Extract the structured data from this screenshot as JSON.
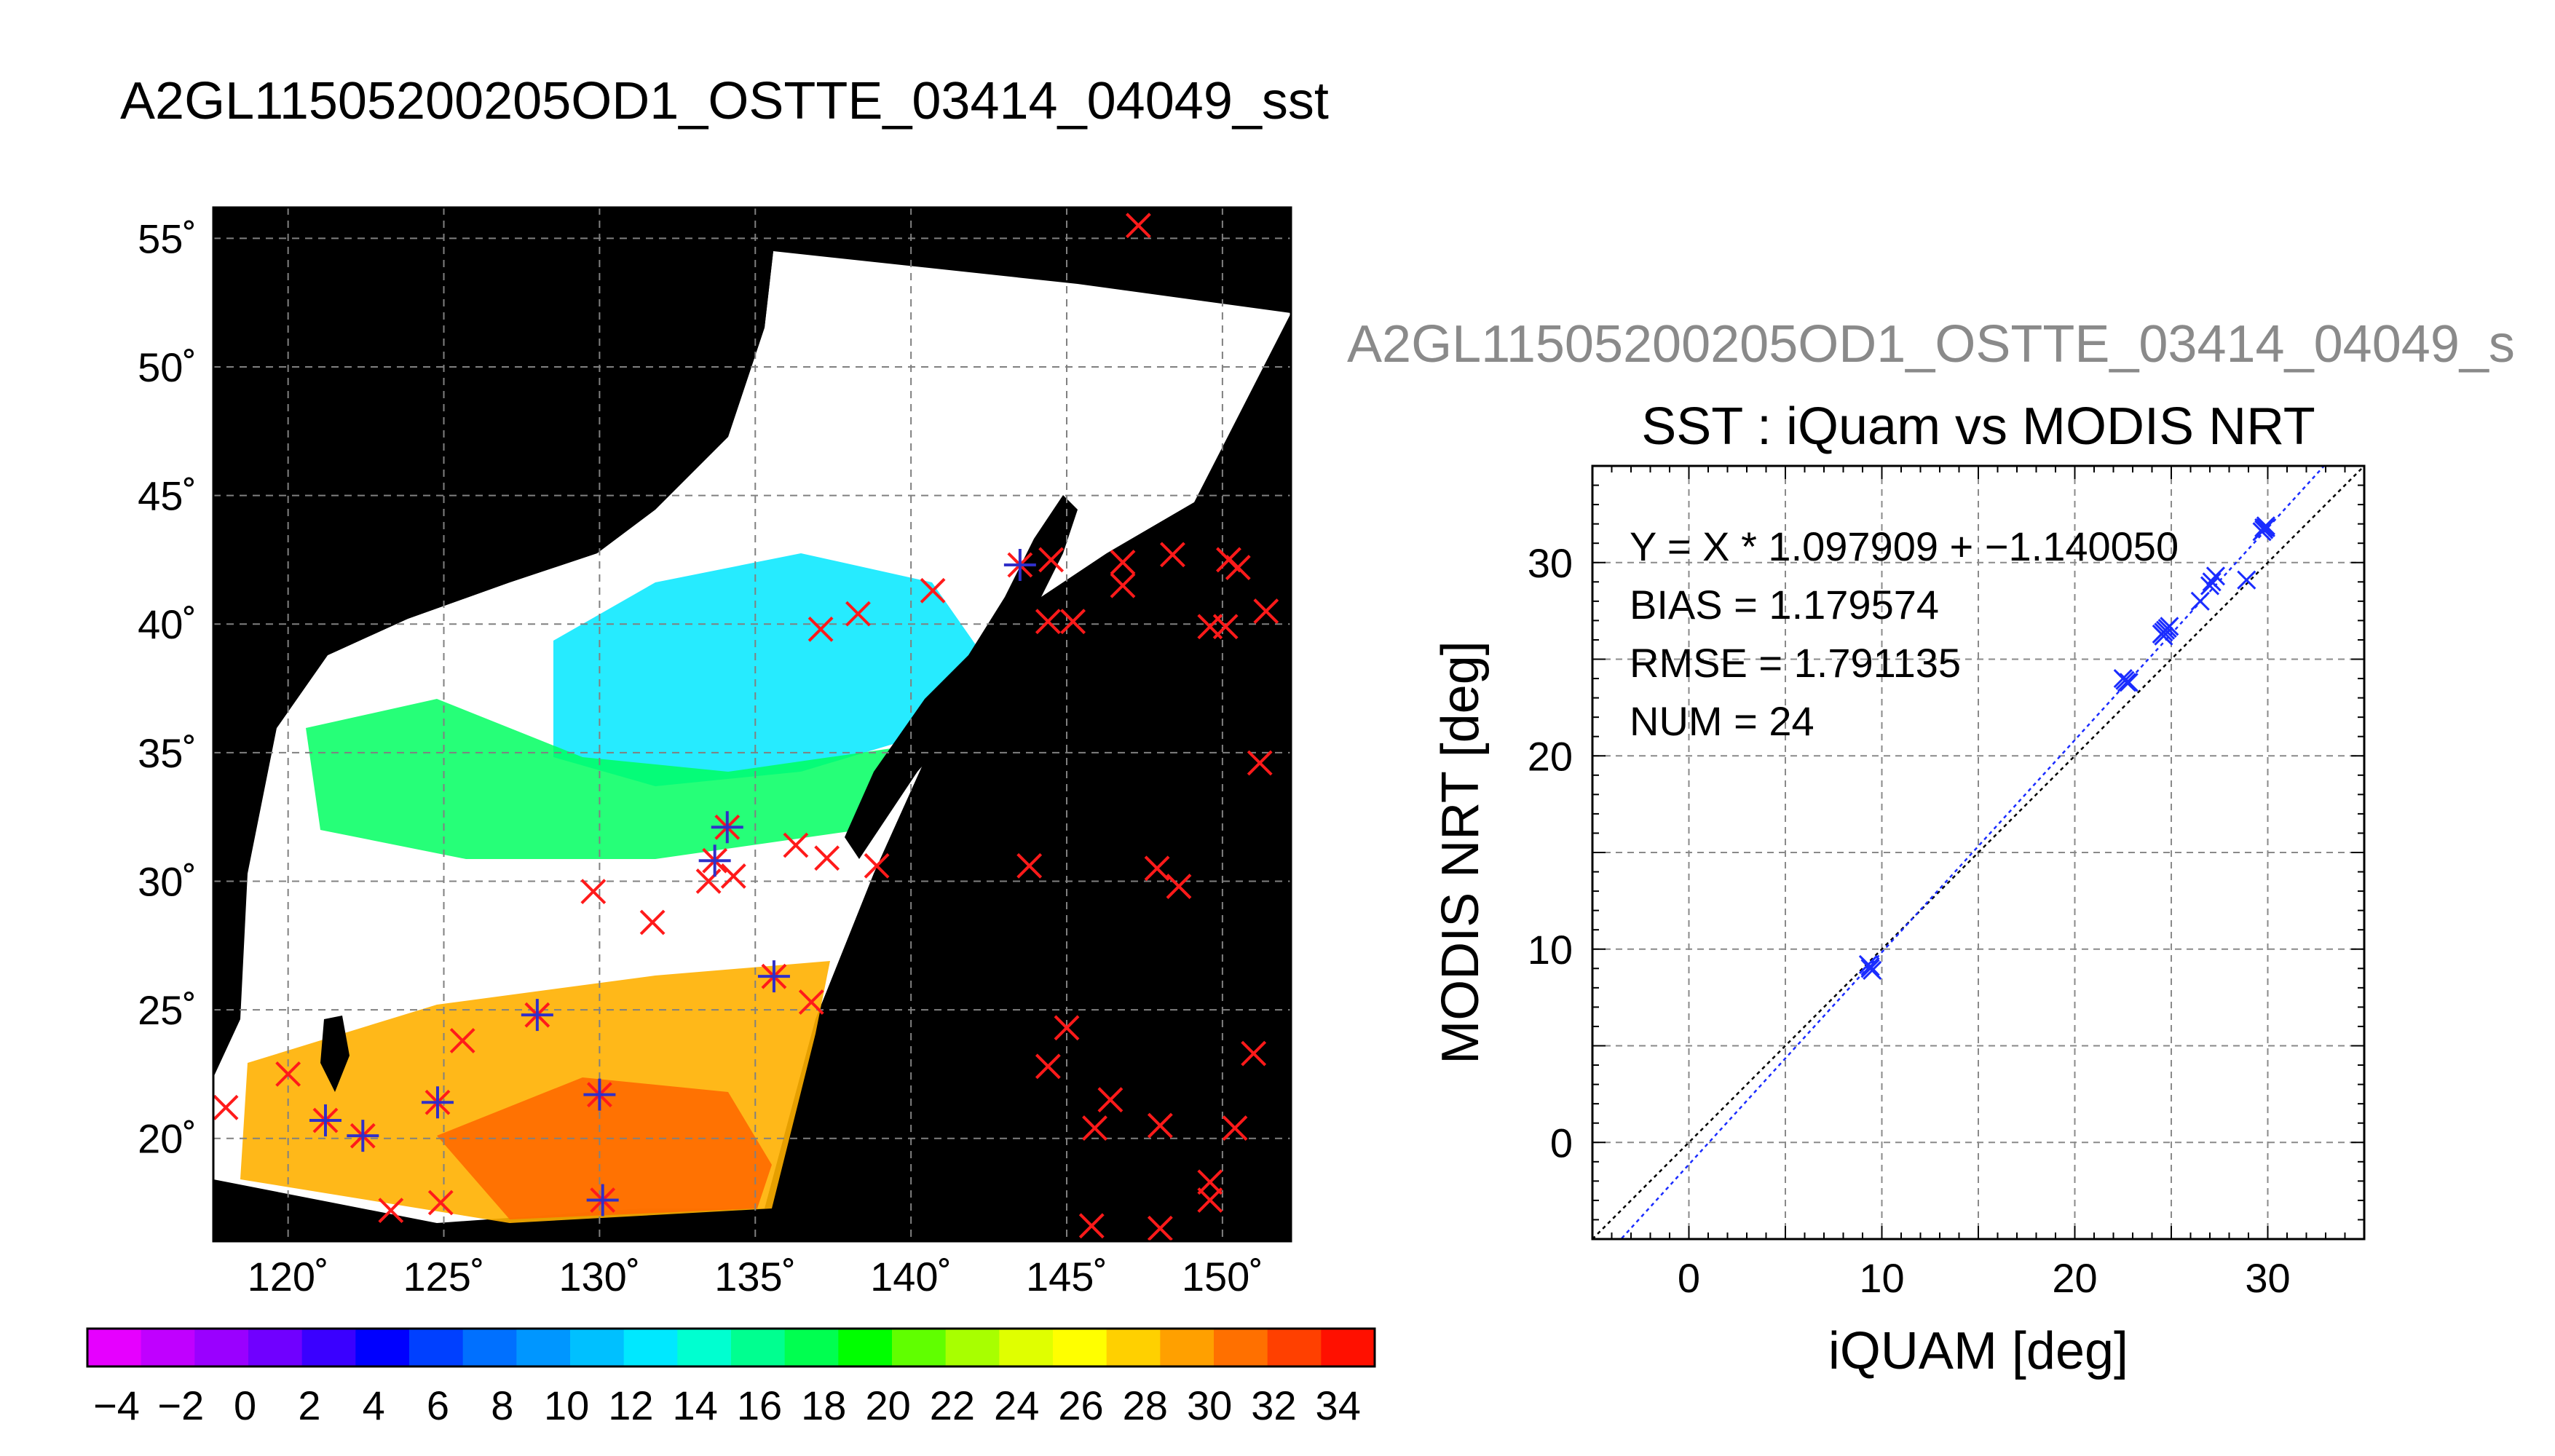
{
  "figure": {
    "title": "A2GL11505200205OD1_OSTTE_03414_04049_sst"
  },
  "map": {
    "lat_ticks": [
      "55˚",
      "50˚",
      "45˚",
      "40˚",
      "35˚",
      "30˚",
      "25˚",
      "20˚"
    ],
    "lon_ticks": [
      "120˚",
      "125˚",
      "130˚",
      "135˚",
      "140˚",
      "145˚",
      "150˚"
    ],
    "colorbar": {
      "ticks": [
        "−4",
        "−2",
        "0",
        "2",
        "4",
        "6",
        "8",
        "10",
        "12",
        "14",
        "16",
        "18",
        "20",
        "22",
        "24",
        "26",
        "28",
        "30",
        "32",
        "34"
      ],
      "colors": [
        "#e600ff",
        "#c000ff",
        "#9a00ff",
        "#7000ff",
        "#3a00ff",
        "#0000ff",
        "#0040ff",
        "#0070ff",
        "#0096ff",
        "#00c0ff",
        "#00e8ff",
        "#00ffd0",
        "#00ff90",
        "#00ff50",
        "#00ff00",
        "#60ff00",
        "#a8ff00",
        "#e0ff00",
        "#ffff00",
        "#ffd000",
        "#ffa000",
        "#ff7000",
        "#ff4000",
        "#ff1000"
      ]
    },
    "colors": {
      "background": "#000000",
      "cloud_mask": "#ffffff",
      "marker_unmatched": "#ff1a1a",
      "marker_matched": "#3030c8"
    }
  },
  "scatter": {
    "header": "A2GL11505200205OD1_OSTTE_03414_04049_s",
    "stats": {
      "equation": "Y = X * 1.097909 + −1.140050",
      "bias": "BIAS = 1.179574",
      "rmse": "RMSE = 1.791135",
      "num": "NUM = 24"
    }
  },
  "chart_data": {
    "type": "scatter",
    "title": "SST : iQuam vs MODIS NRT",
    "xlabel": "iQUAM [deg]",
    "ylabel": "MODIS NRT [deg]",
    "xlim": [
      -5,
      35
    ],
    "ylim": [
      -5,
      35
    ],
    "xticks": [
      "0",
      "10",
      "20",
      "30"
    ],
    "yticks": [
      "0",
      "10",
      "20",
      "30"
    ],
    "grid": true,
    "series": [
      {
        "points": [
          [
            9.3,
            9.2
          ],
          [
            9.5,
            8.9
          ],
          [
            9.4,
            9.0
          ],
          [
            22.5,
            24.0
          ],
          [
            22.8,
            23.8
          ],
          [
            22.6,
            23.9
          ],
          [
            24.5,
            26.3
          ],
          [
            24.8,
            26.6
          ],
          [
            24.6,
            26.4
          ],
          [
            24.7,
            26.5
          ],
          [
            26.5,
            28.0
          ],
          [
            27.0,
            28.8
          ],
          [
            27.3,
            29.3
          ],
          [
            28.9,
            29.1
          ],
          [
            29.8,
            31.7
          ],
          [
            29.9,
            31.9
          ],
          [
            29.7,
            31.6
          ],
          [
            29.9,
            31.8
          ],
          [
            24.6,
            26.2
          ],
          [
            22.7,
            23.8
          ],
          [
            9.4,
            9.1
          ],
          [
            24.9,
            26.7
          ],
          [
            29.8,
            31.8
          ],
          [
            27.1,
            29.0
          ]
        ]
      }
    ],
    "fit_line": {
      "slope": 1.097909,
      "intercept": -1.14005
    },
    "reference_line": {
      "slope": 1,
      "intercept": 0
    },
    "colors": {
      "points": "#1a2cff",
      "fit": "#1a2cff",
      "reference": "#000000"
    }
  }
}
